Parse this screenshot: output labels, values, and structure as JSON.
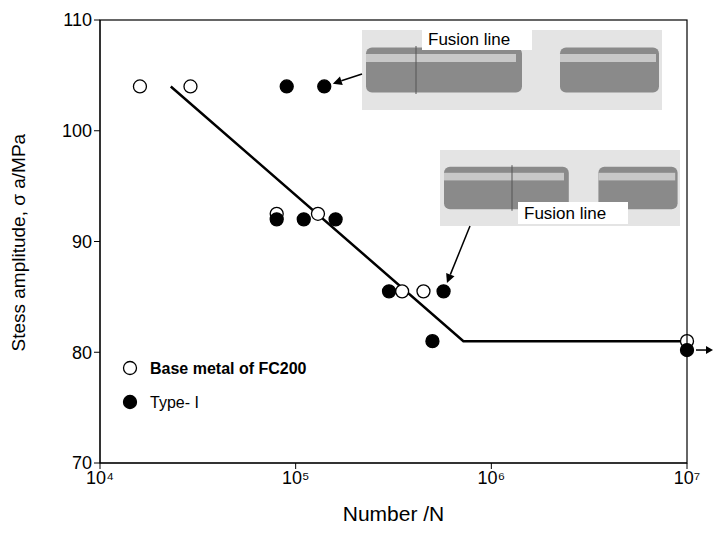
{
  "chart_data": {
    "type": "scatter",
    "x_label": "Number /N",
    "y_label": "Stess amplitude, σ a/MPa",
    "log": "x",
    "grid": false,
    "legend": "lower left",
    "xlim": [
      10000,
      10000000
    ],
    "xticks": [
      {
        "value": 10000,
        "label": "10⁴"
      },
      {
        "value": 100000,
        "label": "10⁵"
      },
      {
        "value": 1000000,
        "label": "10⁶"
      },
      {
        "value": 10000000,
        "label": "10⁷"
      }
    ],
    "ylim": [
      70,
      110
    ],
    "yticks": [
      70,
      80,
      90,
      100,
      110
    ],
    "series": [
      {
        "name": "Base metal of FC200",
        "marker": "open circle",
        "color": "#000000",
        "x": [
          16000,
          29000,
          80000,
          130000,
          350000,
          450000,
          10000000
        ],
        "values": [
          104,
          104,
          92.5,
          92.5,
          85.5,
          85.5,
          81
        ]
      },
      {
        "name": "Type- I",
        "marker": "filled circle",
        "color": "#000000",
        "x": [
          90000,
          140000,
          80000,
          110000,
          160000,
          300000,
          570000,
          500000,
          10000000
        ],
        "values": [
          104,
          104,
          92,
          92,
          92,
          85.5,
          85.5,
          81,
          80.2
        ]
      },
      {
        "type": "line",
        "color": "#000000",
        "x": [
          23000,
          720000,
          10000000
        ],
        "values": [
          104,
          81,
          81
        ]
      }
    ],
    "annotations": [
      {
        "text": "Fusion line"
      },
      {
        "text": "Fusion line"
      }
    ]
  }
}
